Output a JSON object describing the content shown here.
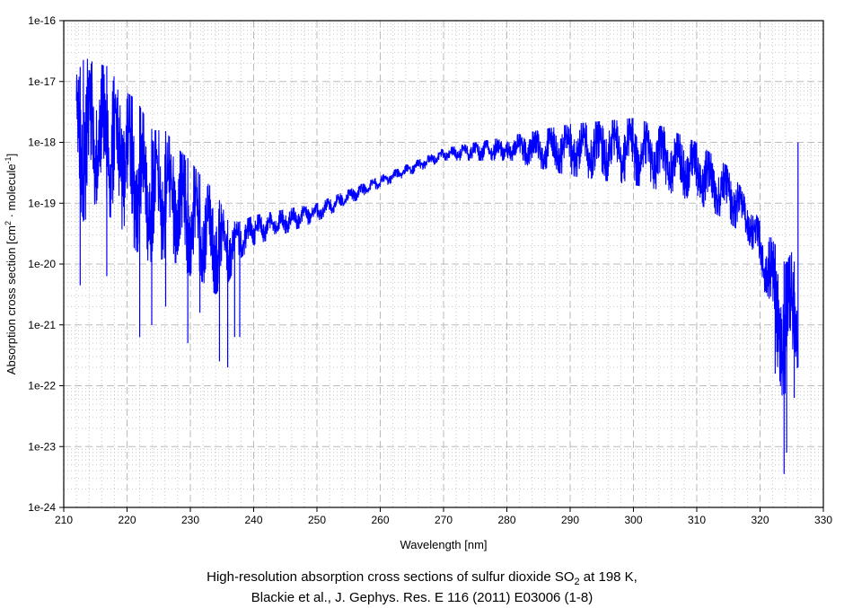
{
  "chart_data": {
    "type": "line",
    "title_line1_pre": "High-resolution absorption cross sections of sulfur dioxide SO",
    "title_line1_sub": "2",
    "title_line1_post": " at 198 K,",
    "title_line2": "Blackie et al., J. Gephys. Res. E 116 (2011) E03006 (1-8)",
    "xlabel": "Wavelength [nm]",
    "ylabel_pre": "Absorption cross section [cm",
    "ylabel_sup1": "2",
    "ylabel_mid": " · molecule",
    "ylabel_sup2": "-1",
    "ylabel_post": "]",
    "xlim": [
      210,
      330
    ],
    "ylim_log10": [
      -24,
      -16
    ],
    "yscale": "log",
    "x_ticks": [
      "210",
      "220",
      "230",
      "240",
      "250",
      "260",
      "270",
      "280",
      "290",
      "300",
      "310",
      "320",
      "330"
    ],
    "y_ticks": [
      "1e-24",
      "1e-23",
      "1e-22",
      "1e-21",
      "1e-20",
      "1e-19",
      "1e-18",
      "1e-17",
      "1e-16"
    ],
    "grid": true,
    "series_color": "#0000ff",
    "series": [
      {
        "name": "SO2 198 K",
        "envelope_log10": [
          {
            "x": 212.0,
            "hi": -16.9,
            "lo": -19.0
          },
          {
            "x": 213.3,
            "hi": -16.6,
            "lo": -19.3
          },
          {
            "x": 215.0,
            "hi": -16.7,
            "lo": -19.0
          },
          {
            "x": 217.0,
            "hi": -16.75,
            "lo": -19.2
          },
          {
            "x": 219.0,
            "hi": -17.1,
            "lo": -19.4
          },
          {
            "x": 221.5,
            "hi": -17.3,
            "lo": -19.8
          },
          {
            "x": 224.0,
            "hi": -17.8,
            "lo": -20.0
          },
          {
            "x": 226.0,
            "hi": -17.8,
            "lo": -19.9
          },
          {
            "x": 228.0,
            "hi": -18.1,
            "lo": -20.0
          },
          {
            "x": 230.0,
            "hi": -18.3,
            "lo": -20.2
          },
          {
            "x": 232.0,
            "hi": -18.6,
            "lo": -20.3
          },
          {
            "x": 234.0,
            "hi": -18.8,
            "lo": -20.5
          },
          {
            "x": 236.0,
            "hi": -19.3,
            "lo": -20.3
          },
          {
            "x": 238.0,
            "hi": -19.3,
            "lo": -19.9
          },
          {
            "x": 240.0,
            "hi": -19.2,
            "lo": -19.7
          },
          {
            "x": 250.0,
            "hi": -19.0,
            "lo": -19.3
          },
          {
            "x": 260.0,
            "hi": -18.55,
            "lo": -18.75
          },
          {
            "x": 270.0,
            "hi": -18.1,
            "lo": -18.3
          },
          {
            "x": 280.0,
            "hi": -17.9,
            "lo": -18.3
          },
          {
            "x": 290.0,
            "hi": -17.7,
            "lo": -18.55
          },
          {
            "x": 300.0,
            "hi": -17.6,
            "lo": -18.7
          },
          {
            "x": 305.0,
            "hi": -17.75,
            "lo": -18.8
          },
          {
            "x": 310.0,
            "hi": -18.0,
            "lo": -19.0
          },
          {
            "x": 315.0,
            "hi": -18.4,
            "lo": -19.3
          },
          {
            "x": 318.0,
            "hi": -18.9,
            "lo": -19.6
          },
          {
            "x": 320.0,
            "hi": -19.3,
            "lo": -20.2
          },
          {
            "x": 322.0,
            "hi": -19.6,
            "lo": -21.2
          },
          {
            "x": 324.0,
            "hi": -20.0,
            "lo": -22.5
          },
          {
            "x": 325.0,
            "hi": -19.8,
            "lo": -21.8
          },
          {
            "x": 326.0,
            "hi": -20.2,
            "lo": -21.7
          }
        ],
        "spikes_log10": [
          {
            "x": 212.6,
            "lo": -20.35
          },
          {
            "x": 213.1,
            "lo": -19.3
          },
          {
            "x": 216.8,
            "lo": -20.2
          },
          {
            "x": 222.0,
            "lo": -21.2
          },
          {
            "x": 223.9,
            "lo": -21.0
          },
          {
            "x": 226.1,
            "lo": -20.7
          },
          {
            "x": 229.6,
            "lo": -21.3
          },
          {
            "x": 231.5,
            "lo": -20.8
          },
          {
            "x": 234.6,
            "lo": -21.6
          },
          {
            "x": 235.9,
            "lo": -21.7
          },
          {
            "x": 237.0,
            "lo": -21.2
          },
          {
            "x": 237.8,
            "lo": -21.2
          },
          {
            "x": 322.4,
            "lo": -21.8
          },
          {
            "x": 323.8,
            "lo": -23.45
          },
          {
            "x": 324.2,
            "lo": -23.1
          },
          {
            "x": 325.4,
            "lo": -22.2
          },
          {
            "x": 326.0,
            "hi": -18.0
          }
        ]
      }
    ]
  }
}
